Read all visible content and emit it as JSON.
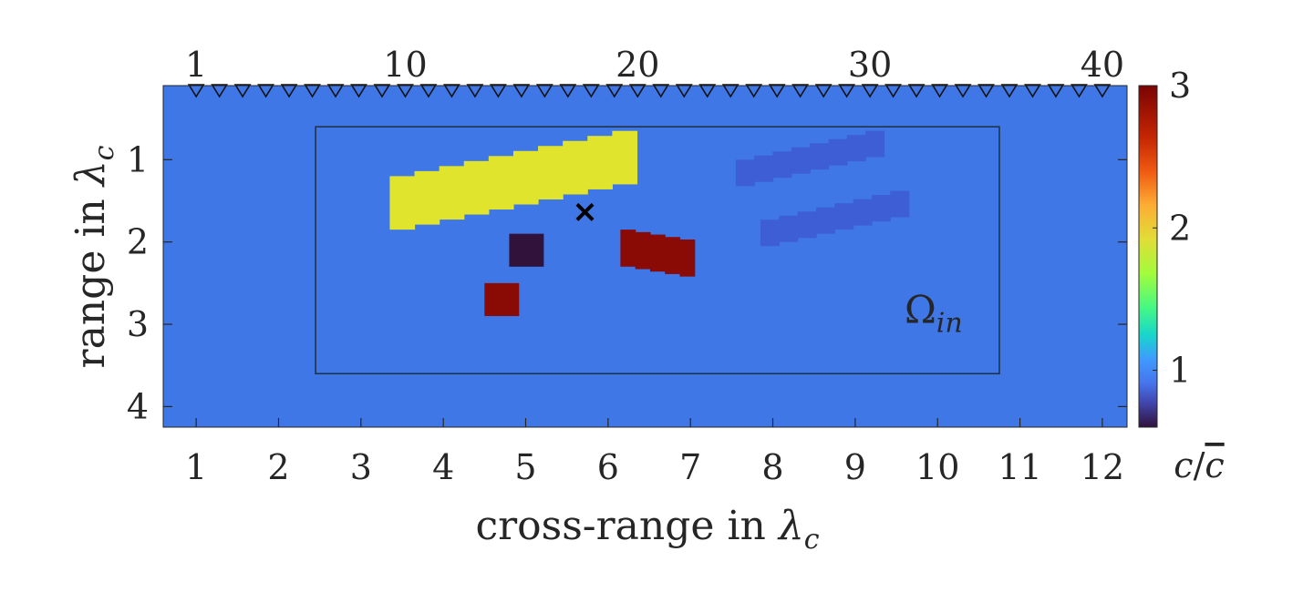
{
  "chart_data": {
    "type": "heatmap",
    "xlabel_text": "cross-range in ",
    "xlabel_symbol": "λ",
    "xlabel_sub": "c",
    "ylabel_text": "range in ",
    "ylabel_symbol": "λ",
    "ylabel_sub": "c",
    "xlim": [
      0.6,
      12.3
    ],
    "ylim": [
      0.1,
      4.25
    ],
    "x_ticks": [
      "1",
      "2",
      "3",
      "4",
      "5",
      "6",
      "7",
      "8",
      "9",
      "10",
      "11",
      "12"
    ],
    "y_ticks": [
      "1",
      "2",
      "3",
      "4"
    ],
    "top_ticks": [
      "1",
      "10",
      "20",
      "30",
      "40"
    ],
    "sensors": {
      "count": 40,
      "x_start": 1.0,
      "x_end": 12.0,
      "y": 0.1
    },
    "background_value": 1.0,
    "colorbar": {
      "label_c": "c",
      "label_cbar": "c",
      "min": 0.6,
      "max": 3.0,
      "ticks": [
        "1",
        "2",
        "3"
      ],
      "colormap": "turbo"
    },
    "region": {
      "label_omega": "Ω",
      "label_sub": "in",
      "x": [
        2.45,
        10.75
      ],
      "y": [
        0.6,
        3.6
      ]
    },
    "marker": {
      "symbol": "×",
      "x": 5.72,
      "y": 1.62
    },
    "objects": [
      {
        "name": "yellow-staircase",
        "value": 2.2,
        "color": "#e0e42c",
        "steps": 10,
        "x_start": 3.35,
        "x_end": 6.35,
        "top_left": 1.2,
        "top_right": 0.65,
        "thickness": 0.65
      },
      {
        "name": "dark-square",
        "value": 0.65,
        "color": "#30123b",
        "rect": [
          4.8,
          5.22,
          1.9,
          2.3
        ]
      },
      {
        "name": "red-square",
        "value": 2.95,
        "color": "#8a0a06",
        "rect": [
          4.5,
          4.92,
          2.5,
          2.9
        ]
      },
      {
        "name": "red-block",
        "value": 2.95,
        "color": "#8a0a06",
        "steps": 5,
        "x_start": 6.15,
        "x_end": 7.05,
        "top_left": 1.85,
        "top_right": 1.97,
        "thickness": 0.45
      },
      {
        "name": "blue-bar-upper",
        "value": 0.85,
        "color": "#3d5ed5",
        "steps": 8,
        "x_start": 7.55,
        "x_end": 9.35,
        "top_left": 1.0,
        "top_right": 0.65,
        "thickness": 0.32
      },
      {
        "name": "blue-bar-lower",
        "value": 0.85,
        "color": "#3d5ed5",
        "steps": 8,
        "x_start": 7.85,
        "x_end": 9.65,
        "top_left": 1.73,
        "top_right": 1.38,
        "thickness": 0.32
      }
    ]
  }
}
